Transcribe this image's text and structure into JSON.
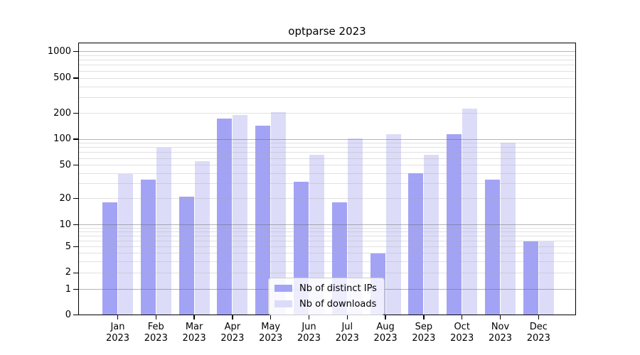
{
  "title": "optparse 2023",
  "chart_data": {
    "type": "bar",
    "title": "optparse 2023",
    "categories": [
      {
        "month": "Jan",
        "year": "2023"
      },
      {
        "month": "Feb",
        "year": "2023"
      },
      {
        "month": "Mar",
        "year": "2023"
      },
      {
        "month": "Apr",
        "year": "2023"
      },
      {
        "month": "May",
        "year": "2023"
      },
      {
        "month": "Jun",
        "year": "2023"
      },
      {
        "month": "Jul",
        "year": "2023"
      },
      {
        "month": "Aug",
        "year": "2023"
      },
      {
        "month": "Sep",
        "year": "2023"
      },
      {
        "month": "Oct",
        "year": "2023"
      },
      {
        "month": "Nov",
        "year": "2023"
      },
      {
        "month": "Dec",
        "year": "2023"
      }
    ],
    "series": [
      {
        "name": "Nb of distinct IPs",
        "color": "#a3a3f5",
        "values": [
          18,
          34,
          21,
          175,
          145,
          32,
          18,
          4,
          40,
          114,
          34,
          6
        ]
      },
      {
        "name": "Nb of downloads",
        "color": "#dcdcf9",
        "values": [
          39,
          80,
          56,
          193,
          207,
          66,
          101,
          114,
          66,
          228,
          91,
          6
        ]
      }
    ],
    "yscale": "log-like (symlog), labeled ticks 0,1,2,5,10,20,50,100,200,500,1000",
    "ytick_labels": [
      "0",
      "1",
      "2",
      "5",
      "10",
      "20",
      "50",
      "100",
      "200",
      "500",
      "1000"
    ],
    "ylim": [
      0,
      1270
    ],
    "grid": "horizontal major (decades) + minor (2-9 per decade)",
    "legend_position": "lower center",
    "colors": {
      "bar_dark": "#a3a3f5",
      "bar_light": "#dcdcf9",
      "grid_major": "#696969",
      "grid_minor": "#d9d9d9",
      "axis": "#000000"
    }
  }
}
